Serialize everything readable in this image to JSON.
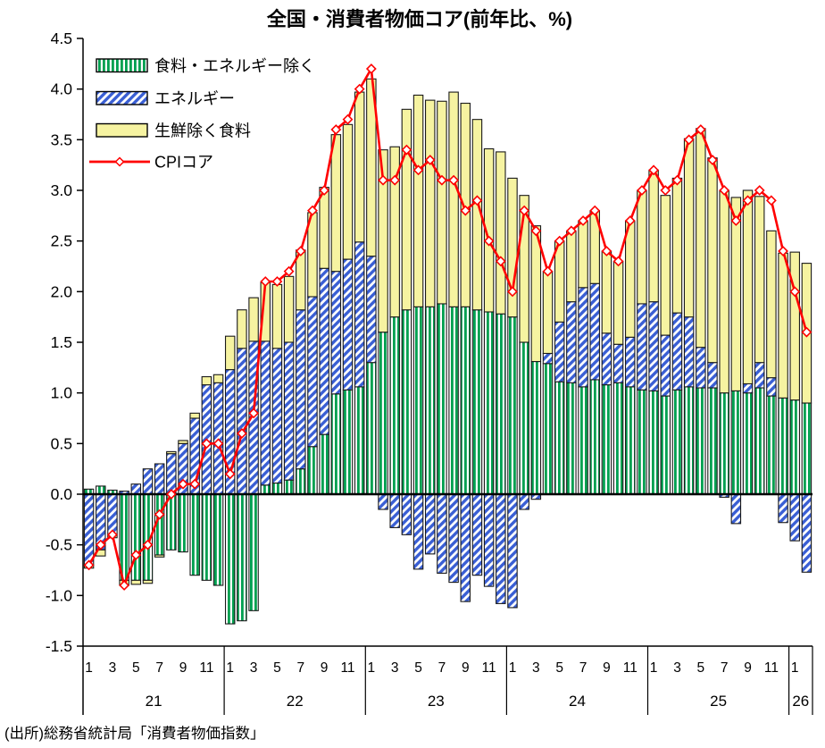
{
  "title": "全国・消費者物価コア(前年比、%)",
  "source_note": "(出所)総務省統計局「消費者物価指数」",
  "legend": {
    "items": [
      {
        "label": "食料・エネルギー除く",
        "swatch": "green-vertical-hatch"
      },
      {
        "label": "エネルギー",
        "swatch": "blue-diagonal-hatch"
      },
      {
        "label": "生鮮除く食料",
        "swatch": "yellow-solid"
      },
      {
        "label": "CPIコア",
        "swatch": "red-line-diamond"
      }
    ]
  },
  "colors": {
    "green": "#00a050",
    "blue": "#3a5fd4",
    "yellow": "#f6f3a1",
    "line": "#ff0000",
    "axis": "#000000",
    "marker_fill": "#ffffff"
  },
  "chart_data": {
    "type": "bar",
    "subtype": "stacked-bars-with-line",
    "ylim": [
      -1.5,
      4.5
    ],
    "ytick_step": 0.5,
    "y_tick_labels": [
      "4.5",
      "4.0",
      "3.5",
      "3.0",
      "2.5",
      "2.0",
      "1.5",
      "1.0",
      "0.5",
      "0.0",
      "-0.5",
      "-1.0",
      "-1.5"
    ],
    "grid": false,
    "legend_position": "top-left-inside",
    "years": [
      {
        "label": "21",
        "n_months": 12,
        "month_labels": [
          1,
          3,
          5,
          7,
          9,
          11
        ]
      },
      {
        "label": "22",
        "n_months": 12,
        "month_labels": [
          1,
          3,
          5,
          7,
          9,
          11
        ]
      },
      {
        "label": "23",
        "n_months": 12,
        "month_labels": [
          1,
          3,
          5,
          7,
          9,
          11
        ]
      },
      {
        "label": "24",
        "n_months": 12,
        "month_labels": [
          1,
          3,
          5,
          7,
          9,
          11
        ]
      },
      {
        "label": "25",
        "n_months": 12,
        "month_labels": [
          1,
          3,
          5,
          7,
          9,
          11
        ]
      },
      {
        "label": "26",
        "n_months": 2,
        "month_labels": [
          1
        ]
      }
    ],
    "series": [
      {
        "name": "食料・エネルギー除く",
        "values": [
          0.05,
          0.08,
          0.04,
          -0.85,
          -0.85,
          -0.85,
          -0.6,
          -0.55,
          -0.57,
          -0.8,
          -0.85,
          -0.9,
          -1.28,
          -1.25,
          -1.15,
          0.09,
          0.11,
          0.14,
          0.25,
          0.47,
          0.59,
          0.99,
          1.03,
          1.06,
          1.3,
          1.6,
          1.75,
          1.82,
          1.85,
          1.85,
          1.88,
          1.85,
          1.85,
          1.82,
          1.8,
          1.78,
          1.75,
          1.5,
          1.31,
          1.29,
          1.11,
          1.1,
          1.06,
          1.13,
          1.08,
          1.1,
          1.06,
          1.03,
          1.02,
          0.97,
          1.03,
          1.06,
          1.05,
          1.05,
          1.0,
          1.02,
          1.0,
          1.05,
          0.97,
          0.95,
          0.93,
          0.9
        ]
      },
      {
        "name": "エネルギー",
        "values": [
          -0.7,
          -0.55,
          -0.4,
          0.03,
          0.1,
          0.25,
          0.3,
          0.4,
          0.5,
          0.75,
          1.08,
          1.1,
          1.23,
          1.44,
          1.51,
          1.42,
          1.33,
          1.36,
          1.57,
          1.48,
          1.64,
          1.21,
          1.29,
          1.43,
          1.05,
          -0.15,
          -0.33,
          -0.4,
          -0.74,
          -0.59,
          -0.78,
          -0.87,
          -1.06,
          -0.8,
          -0.91,
          -1.08,
          -1.12,
          -0.15,
          -0.05,
          0.1,
          0.59,
          0.8,
          0.98,
          0.95,
          0.51,
          0.38,
          0.49,
          0.85,
          0.88,
          0.6,
          0.76,
          0.69,
          0.4,
          0.25,
          -0.03,
          -0.29,
          0.09,
          0.25,
          0.18,
          -0.28,
          -0.46,
          -0.77
        ]
      },
      {
        "name": "生鮮除く食料",
        "values": [
          -0.03,
          -0.06,
          -0.03,
          -0.05,
          -0.04,
          -0.03,
          -0.02,
          0.02,
          0.03,
          0.05,
          0.08,
          0.08,
          0.33,
          0.38,
          0.43,
          0.58,
          0.63,
          0.65,
          0.59,
          0.83,
          0.8,
          1.35,
          1.33,
          1.48,
          1.75,
          1.8,
          1.68,
          1.98,
          2.09,
          2.04,
          2.0,
          2.12,
          2.01,
          1.88,
          1.61,
          1.6,
          1.37,
          1.45,
          1.34,
          0.81,
          0.8,
          0.7,
          0.66,
          0.72,
          0.81,
          0.82,
          1.15,
          1.12,
          1.3,
          1.38,
          1.33,
          1.76,
          2.16,
          2.02,
          2.0,
          1.91,
          1.91,
          1.64,
          1.45,
          1.43,
          1.46,
          1.38
        ]
      }
    ],
    "line": {
      "name": "CPIコア",
      "values": [
        -0.7,
        -0.5,
        -0.4,
        -0.9,
        -0.6,
        -0.5,
        -0.2,
        0.0,
        0.1,
        0.1,
        0.5,
        0.5,
        0.2,
        0.6,
        0.8,
        2.1,
        2.1,
        2.2,
        2.4,
        2.8,
        3.0,
        3.6,
        3.7,
        4.0,
        4.2,
        3.1,
        3.1,
        3.4,
        3.2,
        3.3,
        3.1,
        3.1,
        2.8,
        2.9,
        2.5,
        2.3,
        2.0,
        2.8,
        2.6,
        2.2,
        2.5,
        2.6,
        2.7,
        2.8,
        2.4,
        2.3,
        2.7,
        3.0,
        3.2,
        3.0,
        3.1,
        3.5,
        3.6,
        3.3,
        3.0,
        2.7,
        2.9,
        3.0,
        2.9,
        2.4,
        2.0,
        1.6
      ]
    }
  }
}
